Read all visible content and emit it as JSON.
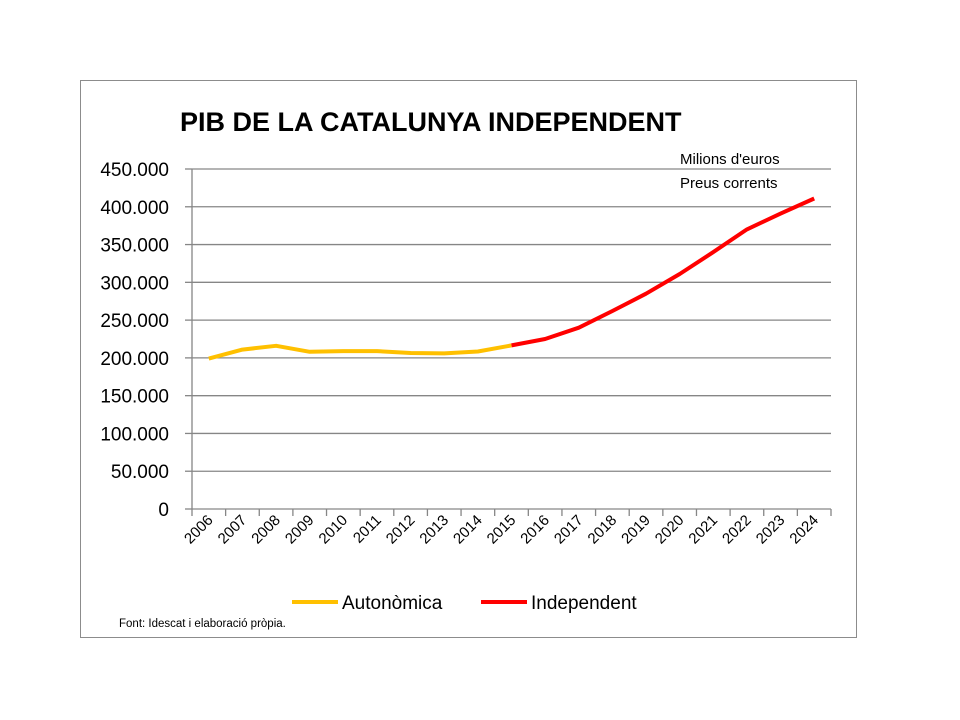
{
  "chart_data": {
    "type": "line",
    "title": "PIB DE LA CATALUNYA INDEPENDENT",
    "annotations": [
      "Milions d'euros",
      "Preus corrents"
    ],
    "source": "Font: Idescat i elaboració pròpia.",
    "x": [
      "2006",
      "2007",
      "2008",
      "2009",
      "2010",
      "2011",
      "2012",
      "2013",
      "2014",
      "2015",
      "2016",
      "2017",
      "2018",
      "2019",
      "2020",
      "2021",
      "2022",
      "2023",
      "2024"
    ],
    "ylim": [
      0,
      450000
    ],
    "yticks": [
      0,
      50000,
      100000,
      150000,
      200000,
      250000,
      300000,
      350000,
      400000,
      450000
    ],
    "ytick_labels": [
      "0",
      "50.000",
      "100.000",
      "150.000",
      "200.000",
      "250.000",
      "300.000",
      "350.000",
      "400.000",
      "450.000"
    ],
    "grid": true,
    "legend_position": "bottom",
    "series": [
      {
        "name": "Autonòmica",
        "color": "#FFC000",
        "x": [
          "2006",
          "2007",
          "2008",
          "2009",
          "2010",
          "2011",
          "2012",
          "2013",
          "2014",
          "2015"
        ],
        "values": [
          199000,
          211000,
          216000,
          208000,
          209000,
          209000,
          206500,
          206000,
          208500,
          216500
        ]
      },
      {
        "name": "Independent",
        "color": "#FF0000",
        "x": [
          "2015",
          "2016",
          "2017",
          "2018",
          "2019",
          "2020",
          "2021",
          "2022",
          "2023",
          "2024"
        ],
        "values": [
          216500,
          225000,
          240000,
          262000,
          285000,
          311000,
          340000,
          370000,
          391000,
          411000
        ]
      }
    ]
  }
}
